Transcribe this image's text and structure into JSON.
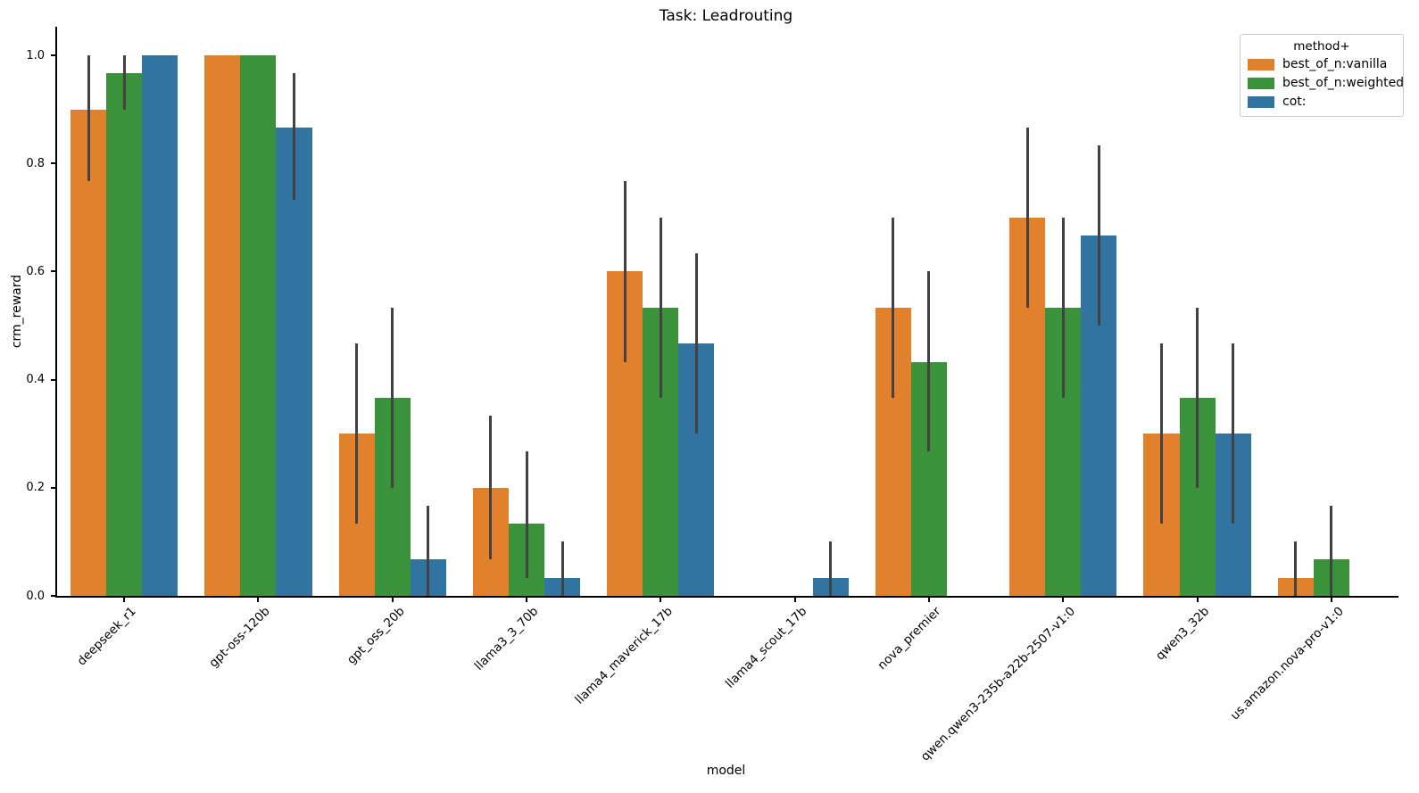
{
  "figure": {
    "title": "Task: Leadrouting",
    "xlabel": "model",
    "ylabel": "crm_reward"
  },
  "legend": {
    "title": "method+"
  },
  "chart_data": {
    "type": "bar",
    "title": "Task: Leadrouting",
    "xlabel": "model",
    "ylabel": "crm_reward",
    "ylim": [
      0.0,
      1.053
    ],
    "yticks": [
      0.0,
      0.2,
      0.4,
      0.6,
      0.8,
      1.0
    ],
    "grid": false,
    "legend_title": "method+",
    "legend_position": "upper right",
    "error_bar_color": "#424242",
    "categories": [
      "deepseek_r1",
      "gpt-oss-120b",
      "gpt_oss_20b",
      "llama3_3_70b",
      "llama4_maverick_17b",
      "llama4_scout_17b",
      "nova_premier",
      "qwen.qwen3-235b-a22b-2507-v1:0",
      "qwen3_32b",
      "us.amazon.nova-pro-v1:0"
    ],
    "series": [
      {
        "name": "best_of_n:vanilla",
        "color": "#e1812c",
        "values": [
          0.9,
          1.0,
          0.3,
          0.2,
          0.6,
          0.0,
          0.533,
          0.7,
          0.3,
          0.033
        ],
        "ci_low": [
          0.767,
          1.0,
          0.133,
          0.067,
          0.433,
          0.0,
          0.367,
          0.533,
          0.133,
          0.0
        ],
        "ci_high": [
          1.0,
          1.0,
          0.467,
          0.333,
          0.767,
          0.0,
          0.7,
          0.867,
          0.467,
          0.1
        ]
      },
      {
        "name": "best_of_n:weighted",
        "color": "#3a923a",
        "values": [
          0.967,
          1.0,
          0.367,
          0.133,
          0.533,
          0.0,
          0.433,
          0.533,
          0.367,
          0.067
        ],
        "ci_low": [
          0.9,
          1.0,
          0.2,
          0.033,
          0.367,
          0.0,
          0.267,
          0.367,
          0.2,
          0.0
        ],
        "ci_high": [
          1.0,
          1.0,
          0.533,
          0.267,
          0.7,
          0.0,
          0.6,
          0.7,
          0.533,
          0.167
        ]
      },
      {
        "name": "cot:",
        "color": "#3274a1",
        "values": [
          1.0,
          0.867,
          0.067,
          0.033,
          0.467,
          0.033,
          0.0,
          0.667,
          0.3,
          0.0
        ],
        "ci_low": [
          1.0,
          0.733,
          0.0,
          0.0,
          0.3,
          0.0,
          0.0,
          0.5,
          0.133,
          0.0
        ],
        "ci_high": [
          1.0,
          0.967,
          0.167,
          0.1,
          0.633,
          0.1,
          0.0,
          0.833,
          0.467,
          0.0
        ]
      }
    ]
  }
}
